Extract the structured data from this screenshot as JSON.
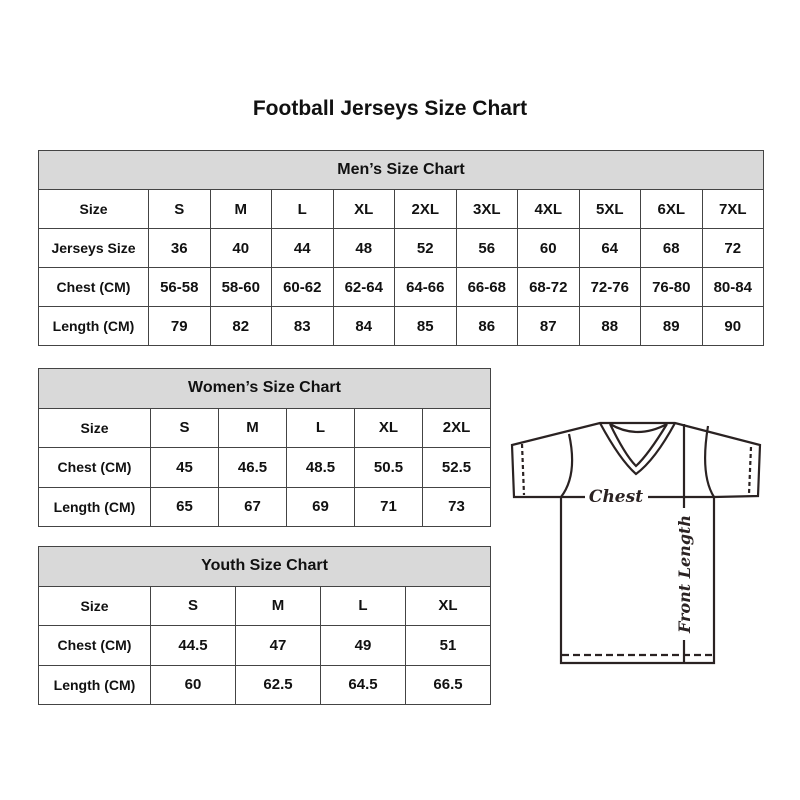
{
  "title": "Football Jerseys Size Chart",
  "men": {
    "title": "Men’s Size Chart",
    "rows": [
      [
        "Size",
        "S",
        "M",
        "L",
        "XL",
        "2XL",
        "3XL",
        "4XL",
        "5XL",
        "6XL",
        "7XL"
      ],
      [
        "Jerseys Size",
        "36",
        "40",
        "44",
        "48",
        "52",
        "56",
        "60",
        "64",
        "68",
        "72"
      ],
      [
        "Chest (CM)",
        "56-58",
        "58-60",
        "60-62",
        "62-64",
        "64-66",
        "66-68",
        "68-72",
        "72-76",
        "76-80",
        "80-84"
      ],
      [
        "Length (CM)",
        "79",
        "82",
        "83",
        "84",
        "85",
        "86",
        "87",
        "88",
        "89",
        "90"
      ]
    ]
  },
  "women": {
    "title": "Women’s Size Chart",
    "rows": [
      [
        "Size",
        "S",
        "M",
        "L",
        "XL",
        "2XL"
      ],
      [
        "Chest (CM)",
        "45",
        "46.5",
        "48.5",
        "50.5",
        "52.5"
      ],
      [
        "Length (CM)",
        "65",
        "67",
        "69",
        "71",
        "73"
      ]
    ]
  },
  "youth": {
    "title": "Youth Size Chart",
    "rows": [
      [
        "Size",
        "S",
        "M",
        "L",
        "XL"
      ],
      [
        "Chest (CM)",
        "44.5",
        "47",
        "49",
        "51"
      ],
      [
        "Length (CM)",
        "60",
        "62.5",
        "64.5",
        "66.5"
      ]
    ]
  },
  "diagram": {
    "chest_label": "Chest",
    "length_label": "Front Length"
  },
  "colors": {
    "header_bg": "#d9d9d9",
    "border": "#444444",
    "outline": "#2a2222"
  }
}
